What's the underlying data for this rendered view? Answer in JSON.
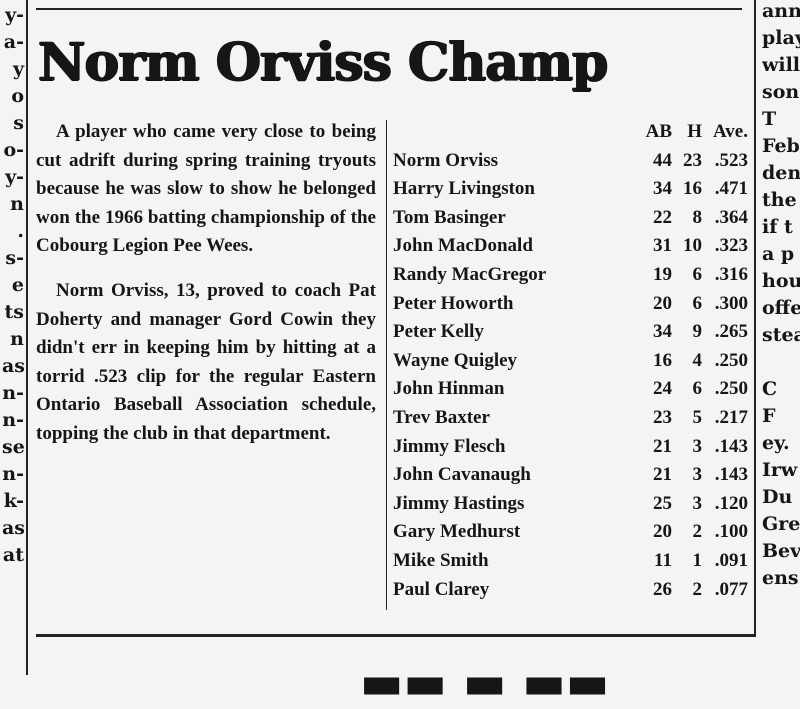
{
  "left_column_fragments": [
    "y-",
    "a-",
    "y",
    "o",
    "s",
    "o-",
    "y-",
    "n",
    ".",
    "s-",
    "e",
    "ts",
    "n",
    "as",
    "n-",
    "n-",
    "se",
    "n-",
    "k-",
    "as",
    "at"
  ],
  "right_column_fragments": [
    "ann",
    "play",
    "will",
    "son.",
    "T",
    "Feb",
    "den",
    "the",
    "if t",
    "a p",
    "hou",
    "offe",
    "stea",
    "",
    "C",
    "F",
    "ey.",
    "Irw",
    "Du",
    "Gre",
    "Bev",
    "ens"
  ],
  "headline": "Norm Orviss Champ",
  "article": {
    "paragraphs": [
      "A player who came very close to being cut adrift during spring training tryouts because he was slow to show he belonged won the 1966 batting championship of the Cobourg Legion Pee Wees.",
      "Norm Orviss, 13, proved to coach Pat Doherty and manager Gord Cowin they didn't err in keeping him by hitting at a torrid .523 clip for the regular Eastern Ontario Baseball Association schedule, topping the club in that department."
    ]
  },
  "stats_table": {
    "headers": [
      "",
      "AB",
      "H",
      "Ave."
    ],
    "rows": [
      [
        "Norm Orviss",
        "44",
        "23",
        ".523"
      ],
      [
        "Harry Livingston",
        "34",
        "16",
        ".471"
      ],
      [
        "Tom Basinger",
        "22",
        "8",
        ".364"
      ],
      [
        "John MacDonald",
        "31",
        "10",
        ".323"
      ],
      [
        "Randy MacGregor",
        "19",
        "6",
        ".316"
      ],
      [
        "Peter Howorth",
        "20",
        "6",
        ".300"
      ],
      [
        "Peter Kelly",
        "34",
        "9",
        ".265"
      ],
      [
        "Wayne Quigley",
        "16",
        "4",
        ".250"
      ],
      [
        "John Hinman",
        "24",
        "6",
        ".250"
      ],
      [
        "Trev Baxter",
        "23",
        "5",
        ".217"
      ],
      [
        "Jimmy Flesch",
        "21",
        "3",
        ".143"
      ],
      [
        "John Cavanaugh",
        "21",
        "3",
        ".143"
      ],
      [
        "Jimmy Hastings",
        "25",
        "3",
        ".120"
      ],
      [
        "Gary Medhurst",
        "20",
        "2",
        ".100"
      ],
      [
        "Mike Smith",
        "11",
        "1",
        ".091"
      ],
      [
        "Paul Clarey",
        "26",
        "2",
        ".077"
      ]
    ]
  }
}
